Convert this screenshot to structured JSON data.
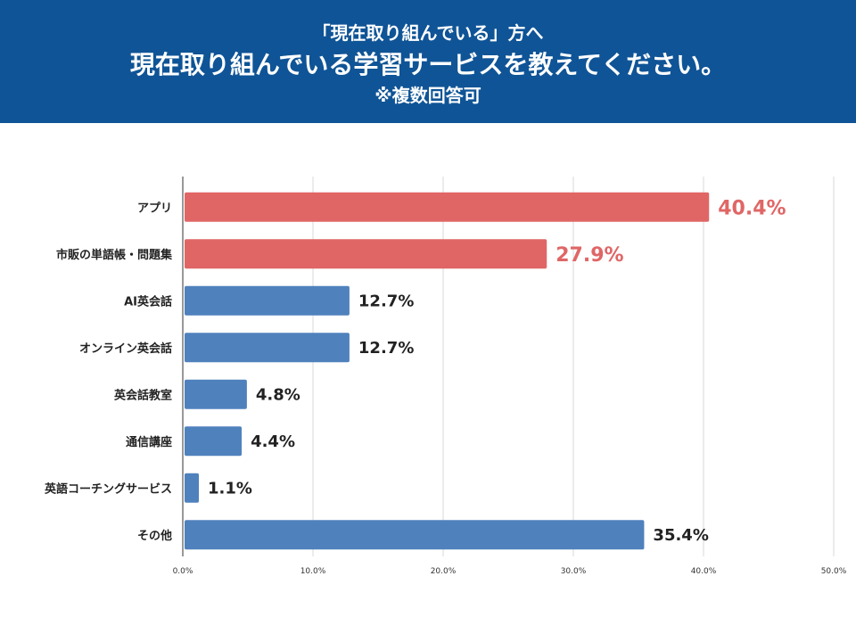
{
  "header": {
    "line1": "「現在取り組んでいる」方へ",
    "line2": "現在取り組んでいる学習サービスを教えてください。",
    "line3": "※複数回答可"
  },
  "chart_data": {
    "type": "bar",
    "orientation": "horizontal",
    "categories": [
      "アプリ",
      "市販の単語帳・問題集",
      "AI英会話",
      "オンライン英会話",
      "英会話教室",
      "通信講座",
      "英語コーチングサービス",
      "その他"
    ],
    "values": [
      40.4,
      27.9,
      12.7,
      12.7,
      4.8,
      4.4,
      1.1,
      35.4
    ],
    "value_labels": [
      "40.4%",
      "27.9%",
      "12.7%",
      "12.7%",
      "4.8%",
      "4.4%",
      "1.1%",
      "35.4%"
    ],
    "highlight": [
      true,
      true,
      false,
      false,
      false,
      false,
      false,
      false
    ],
    "xlim": [
      0,
      50
    ],
    "xticks": [
      0,
      10,
      20,
      30,
      40,
      50
    ],
    "xtick_labels": [
      "0.0%",
      "10.0%",
      "20.0%",
      "30.0%",
      "40.0%",
      "50.0%"
    ],
    "grid": true,
    "colors": {
      "highlight": "#e06666",
      "normal": "#4f81bd",
      "highlight_text": "#e06666",
      "normal_text": "#222222"
    }
  }
}
